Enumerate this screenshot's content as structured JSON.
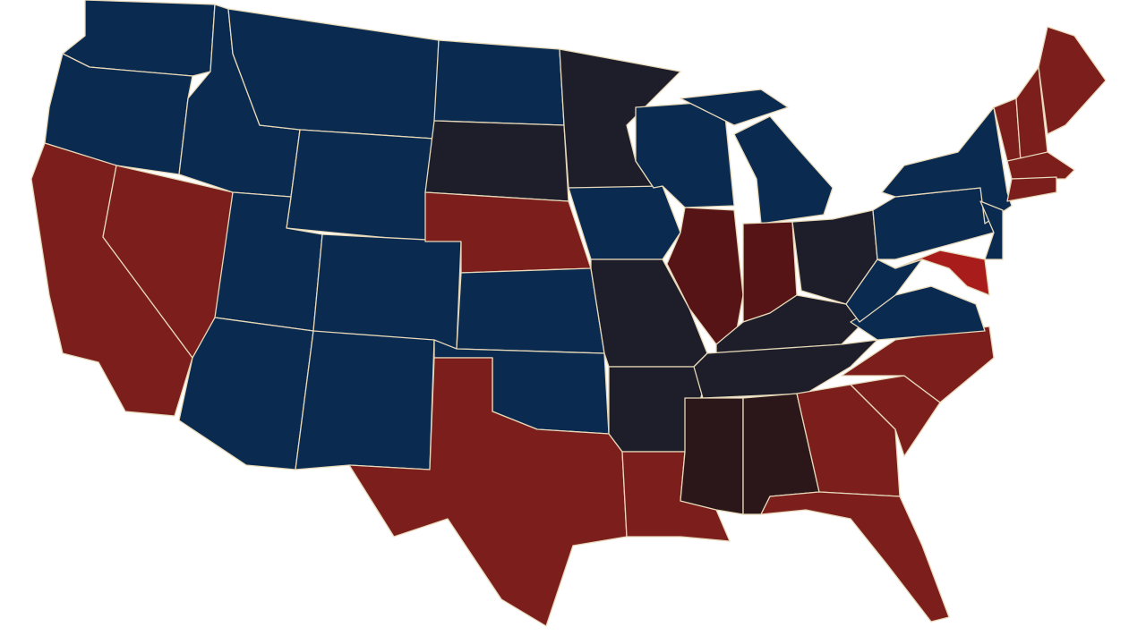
{
  "map": {
    "fill_colors": [
      "#0b2a50",
      "#1e1e2a",
      "#7b1e1c",
      "#561416",
      "#2b1719",
      "#a81c1c"
    ],
    "border_color": "#e6d8b8",
    "background": "#ffffff"
  }
}
